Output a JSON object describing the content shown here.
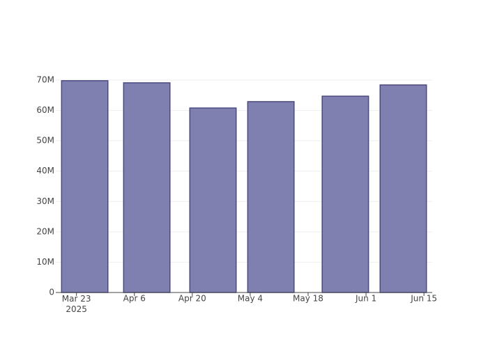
{
  "chart_data": {
    "type": "bar",
    "x": [
      "2025-03-25",
      "2025-04-09",
      "2025-04-25",
      "2025-05-09",
      "2025-05-27",
      "2025-06-10"
    ],
    "values": [
      69800000,
      69100000,
      60800000,
      62900000,
      64700000,
      68400000
    ],
    "color": "#7f7fb0",
    "edge_color": "#4a4a80",
    "xlim": [
      "2025-03-18",
      "2025-06-17"
    ],
    "xticks": [
      {
        "value": "2025-03-23",
        "label": "Mar 23\n2025"
      },
      {
        "value": "2025-04-06",
        "label": "Apr 6"
      },
      {
        "value": "2025-04-20",
        "label": "Apr 20"
      },
      {
        "value": "2025-05-04",
        "label": "May 4"
      },
      {
        "value": "2025-05-18",
        "label": "May 18"
      },
      {
        "value": "2025-06-01",
        "label": "Jun 1"
      },
      {
        "value": "2025-06-15",
        "label": "Jun 15"
      }
    ],
    "ylim": [
      0,
      70000000
    ],
    "yticks": [
      0,
      {
        "value": 10000000,
        "label": "10M"
      },
      {
        "value": 20000000,
        "label": "20M"
      },
      {
        "value": 30000000,
        "label": "30M"
      },
      {
        "value": 40000000,
        "label": "40M"
      },
      {
        "value": 50000000,
        "label": "50M"
      },
      {
        "value": 60000000,
        "label": "60M"
      },
      {
        "value": 70000000,
        "label": "70M"
      }
    ],
    "grid": true
  }
}
